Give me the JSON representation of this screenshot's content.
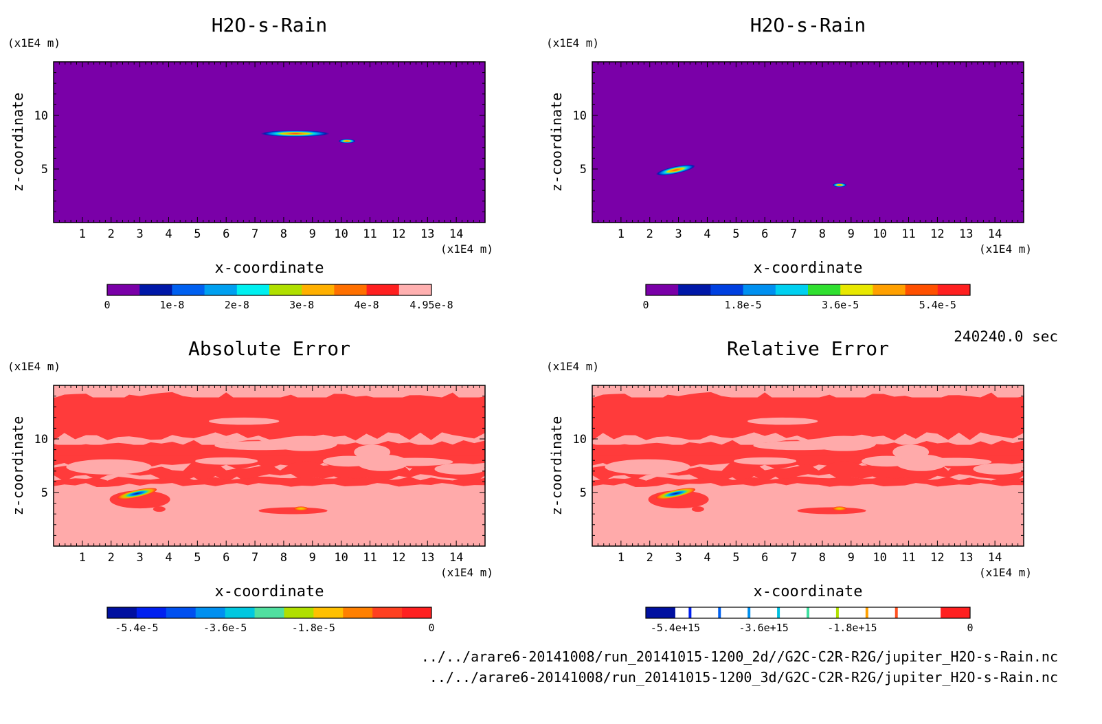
{
  "timestamp": "240240.0 sec",
  "files": [
    "../../arare6-20141008/run_20141015-1200_2d//G2C-C2R-R2G/jupiter_H2O-s-Rain.nc",
    "../../arare6-20141008/run_20141015-1200_3d/G2C-C2R-R2G/jupiter_H2O-s-Rain.nc"
  ],
  "chart_data": [
    {
      "type": "heatmap",
      "title": "H2O-s-Rain",
      "xlabel": "x-coordinate",
      "ylabel": "z-coordinate",
      "x_unit": "(x1E4 m)",
      "y_unit": "(x1E4 m)",
      "xlim": [
        0,
        15
      ],
      "ylim": [
        0,
        15
      ],
      "x_ticks": [
        "1",
        "2",
        "3",
        "4",
        "5",
        "6",
        "7",
        "8",
        "9",
        "10",
        "11",
        "12",
        "13",
        "14"
      ],
      "y_ticks": [
        "5",
        "10"
      ],
      "background_value": 0,
      "features": [
        {
          "x": 8.4,
          "z": 8.3,
          "dx": 1.2,
          "dz": 0.3,
          "peak": 4e-08
        },
        {
          "x": 10.2,
          "z": 7.6,
          "dx": 0.3,
          "dz": 0.1,
          "peak": 5e-09
        }
      ],
      "colorbar": {
        "colors": [
          "#7a00a8",
          "#0018a8",
          "#0060f0",
          "#00a0f0",
          "#00f0f0",
          "#b0e000",
          "#ffb000",
          "#ff7000",
          "#ff2020",
          "#ffb0b0"
        ],
        "labels": [
          "0",
          "1e-8",
          "2e-8",
          "3e-8",
          "4e-8",
          "4.95e-8"
        ]
      }
    },
    {
      "type": "heatmap",
      "title": "H2O-s-Rain",
      "xlabel": "x-coordinate",
      "ylabel": "z-coordinate",
      "x_unit": "(x1E4 m)",
      "y_unit": "(x1E4 m)",
      "xlim": [
        0,
        15
      ],
      "ylim": [
        0,
        15
      ],
      "x_ticks": [
        "1",
        "2",
        "3",
        "4",
        "5",
        "6",
        "7",
        "8",
        "9",
        "10",
        "11",
        "12",
        "13",
        "14"
      ],
      "y_ticks": [
        "5",
        "10"
      ],
      "background_value": 0,
      "features": [
        {
          "x": 2.9,
          "z": 4.9,
          "dx": 0.7,
          "dz": 0.35,
          "peak": 6e-05
        },
        {
          "x": 8.6,
          "z": 3.5,
          "dx": 0.25,
          "dz": 0.12,
          "peak": 3e-05
        }
      ],
      "colorbar": {
        "colors": [
          "#7a00a8",
          "#0018a8",
          "#0040e0",
          "#0090f0",
          "#00d0f0",
          "#30e030",
          "#e8e800",
          "#ffa000",
          "#ff5000",
          "#ff2020"
        ],
        "labels": [
          "0",
          "1.8e-5",
          "3.6e-5",
          "5.4e-5"
        ]
      }
    },
    {
      "type": "heatmap",
      "title": "Absolute Error",
      "xlabel": "x-coordinate",
      "ylabel": "z-coordinate",
      "x_unit": "(x1E4 m)",
      "y_unit": "(x1E4 m)",
      "xlim": [
        0,
        15
      ],
      "ylim": [
        0,
        15
      ],
      "x_ticks": [
        "1",
        "2",
        "3",
        "4",
        "5",
        "6",
        "7",
        "8",
        "9",
        "10",
        "11",
        "12",
        "13",
        "14"
      ],
      "y_ticks": [
        "5",
        "10"
      ],
      "features": [
        {
          "x": 2.9,
          "z": 4.9,
          "dx": 0.7,
          "dz": 0.35,
          "peak": -6e-05
        },
        {
          "x": 8.6,
          "z": 3.5,
          "dx": 0.25,
          "dz": 0.12,
          "peak": -3e-05
        }
      ],
      "colorbar": {
        "colors": [
          "#0010a0",
          "#0020f0",
          "#0050f0",
          "#0090f0",
          "#00c8e0",
          "#50e0a0",
          "#b0e000",
          "#ffc000",
          "#ff8000",
          "#ff4020",
          "#ff2020"
        ],
        "labels": [
          "-5.4e-5",
          "-3.6e-5",
          "-1.8e-5",
          "0"
        ]
      }
    },
    {
      "type": "heatmap",
      "title": "Relative Error",
      "xlabel": "x-coordinate",
      "ylabel": "z-coordinate",
      "x_unit": "(x1E4 m)",
      "y_unit": "(x1E4 m)",
      "xlim": [
        0,
        15
      ],
      "ylim": [
        0,
        15
      ],
      "x_ticks": [
        "1",
        "2",
        "3",
        "4",
        "5",
        "6",
        "7",
        "8",
        "9",
        "10",
        "11",
        "12",
        "13",
        "14"
      ],
      "y_ticks": [
        "5",
        "10"
      ],
      "features": [
        {
          "x": 2.9,
          "z": 4.9,
          "dx": 0.7,
          "dz": 0.35,
          "peak": -6000000000000000.0
        },
        {
          "x": 8.6,
          "z": 3.5,
          "dx": 0.25,
          "dz": 0.12,
          "peak": -3000000000000000.0
        }
      ],
      "colorbar": {
        "colors": [
          "#0010a0",
          "#ffffff",
          "#ffffff",
          "#ffffff",
          "#ffffff",
          "#ffffff",
          "#ffffff",
          "#ffffff",
          "#ffffff",
          "#ffffff",
          "#ff2020"
        ],
        "separators": [
          "#0020f0",
          "#0060f0",
          "#0090f0",
          "#00c0e0",
          "#40e0a0",
          "#b0e000",
          "#ffa000",
          "#ff5020"
        ],
        "labels": [
          "-5.4e+15",
          "-3.6e+15",
          "-1.8e+15",
          "0"
        ]
      }
    }
  ]
}
